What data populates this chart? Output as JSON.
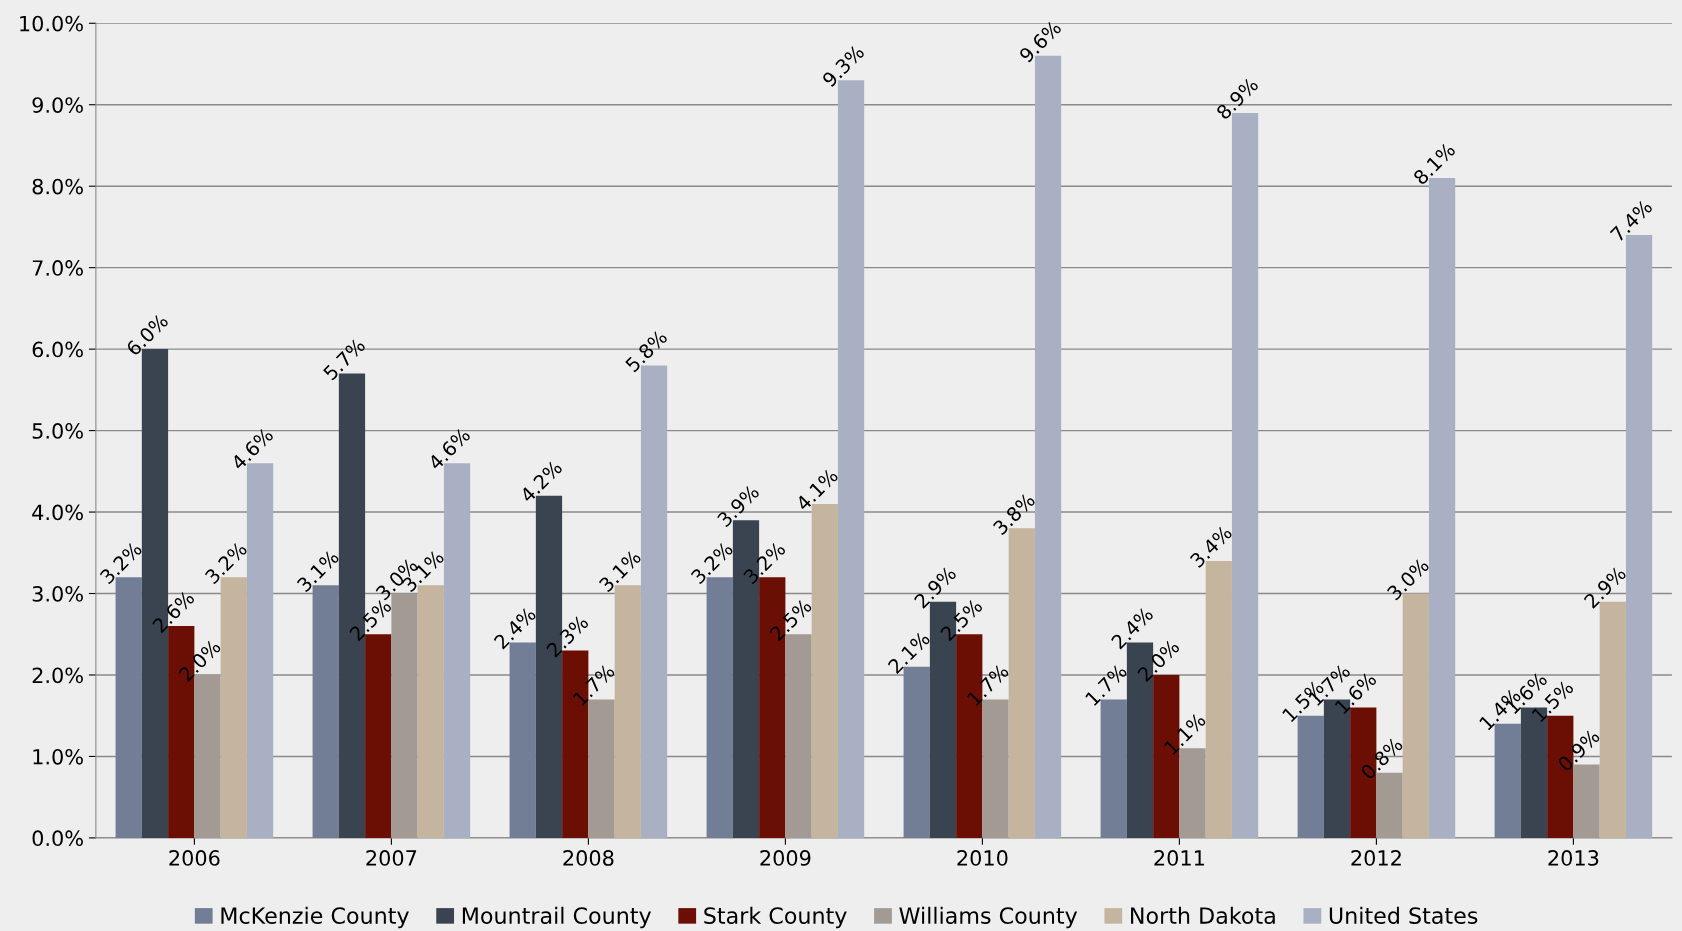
{
  "chart_data": {
    "type": "bar",
    "categories": [
      "2006",
      "2007",
      "2008",
      "2009",
      "2010",
      "2011",
      "2012",
      "2013"
    ],
    "series": [
      {
        "name": "McKenzie County",
        "color": "#717e96",
        "values": [
          3.2,
          3.1,
          2.4,
          3.2,
          2.1,
          1.7,
          1.5,
          1.4
        ],
        "value_labels": [
          "3.2%",
          "3.1%",
          "2.4%",
          "3.2%",
          "2.1%",
          "1.7%",
          "1.5%",
          "1.4%"
        ]
      },
      {
        "name": "Mountrail County",
        "color": "#3a4350",
        "values": [
          6.0,
          5.7,
          4.2,
          3.9,
          2.9,
          2.4,
          1.7,
          1.6
        ],
        "value_labels": [
          "6.0%",
          "5.7%",
          "4.2%",
          "3.9%",
          "2.9%",
          "2.4%",
          "1.7%",
          "1.6%"
        ]
      },
      {
        "name": "Stark County",
        "color": "#6b0f05",
        "values": [
          2.6,
          2.5,
          2.3,
          3.2,
          2.5,
          2.0,
          1.6,
          1.5
        ],
        "value_labels": [
          "2.6%",
          "2.5%",
          "2.3%",
          "3.2%",
          "2.5%",
          "2.0%",
          "1.6%",
          "1.5%"
        ]
      },
      {
        "name": "Williams County",
        "color": "#a29a93",
        "values": [
          2.0,
          3.0,
          1.7,
          2.5,
          1.7,
          1.1,
          0.8,
          0.9
        ],
        "value_labels": [
          "2.0%",
          "3.0%",
          "1.7%",
          "2.5%",
          "1.7%",
          "1.1%",
          "0.8%",
          "0.9%"
        ]
      },
      {
        "name": "North Dakota",
        "color": "#c5b59e",
        "values": [
          3.2,
          3.1,
          3.1,
          4.1,
          3.8,
          3.4,
          3.0,
          2.9
        ],
        "value_labels": [
          "3.2%",
          "3.1%",
          "3.1%",
          "4.1%",
          "3.8%",
          "3.4%",
          "3.0%",
          "2.9%"
        ]
      },
      {
        "name": "United States",
        "color": "#aab0c3",
        "values": [
          4.6,
          4.6,
          5.8,
          9.3,
          9.6,
          8.9,
          8.1,
          7.4
        ],
        "value_labels": [
          "4.6%",
          "4.6%",
          "5.8%",
          "9.3%",
          "9.6%",
          "8.9%",
          "8.1%",
          "7.4%"
        ]
      }
    ],
    "ylim": [
      0,
      10
    ],
    "yticks": [
      {
        "value": 0,
        "label": "0.0%"
      },
      {
        "value": 1,
        "label": "1.0%"
      },
      {
        "value": 2,
        "label": "2.0%"
      },
      {
        "value": 3,
        "label": "3.0%"
      },
      {
        "value": 4,
        "label": "4.0%"
      },
      {
        "value": 5,
        "label": "5.0%"
      },
      {
        "value": 6,
        "label": "6.0%"
      },
      {
        "value": 7,
        "label": "7.0%"
      },
      {
        "value": 8,
        "label": "8.0%"
      },
      {
        "value": 9,
        "label": "9.0%"
      },
      {
        "value": 10,
        "label": "10.0%"
      }
    ],
    "grid": "y",
    "legend": "bottom"
  }
}
